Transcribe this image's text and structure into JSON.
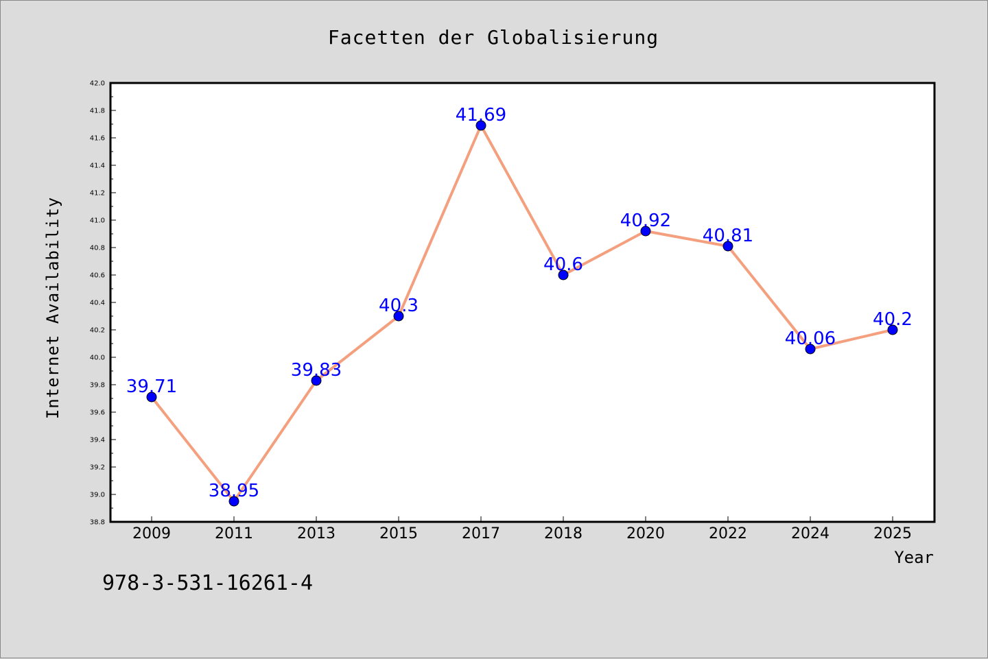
{
  "chart_data": {
    "type": "line",
    "title": "Facetten der Globalisierung",
    "xlabel": "Year",
    "ylabel": "Internet Availability",
    "categories": [
      "2009",
      "2011",
      "2013",
      "2015",
      "2017",
      "2018",
      "2020",
      "2022",
      "2024",
      "2025"
    ],
    "series": [
      {
        "values": [
          39.71,
          38.95,
          39.83,
          40.3,
          41.69,
          40.6,
          40.92,
          40.81,
          40.06,
          40.2
        ],
        "data_labels": [
          "39.71",
          "38.95",
          "39.83",
          "40.3",
          "41.69",
          "40.6",
          "40.92",
          "40.81",
          "40.06",
          "40.2"
        ],
        "line_color": "#f4a07e",
        "marker_color": "#0000ff"
      }
    ],
    "ylim": [
      38.8,
      42.0
    ],
    "yticks": [
      "38.8",
      "39.0",
      "39.2",
      "39.4",
      "39.6",
      "39.8",
      "40.0",
      "40.2",
      "40.4",
      "40.6",
      "40.8",
      "41.0",
      "41.2",
      "41.4",
      "41.6",
      "41.8",
      "42.0"
    ],
    "grid": false,
    "legend": "none"
  },
  "footer": {
    "isbn": "978-3-531-16261-4"
  },
  "colors": {
    "background": "#dcdcdc",
    "plot_background": "#ffffff",
    "line": "#f4a07e",
    "marker": "#0000ff",
    "data_label": "#0000ff"
  }
}
